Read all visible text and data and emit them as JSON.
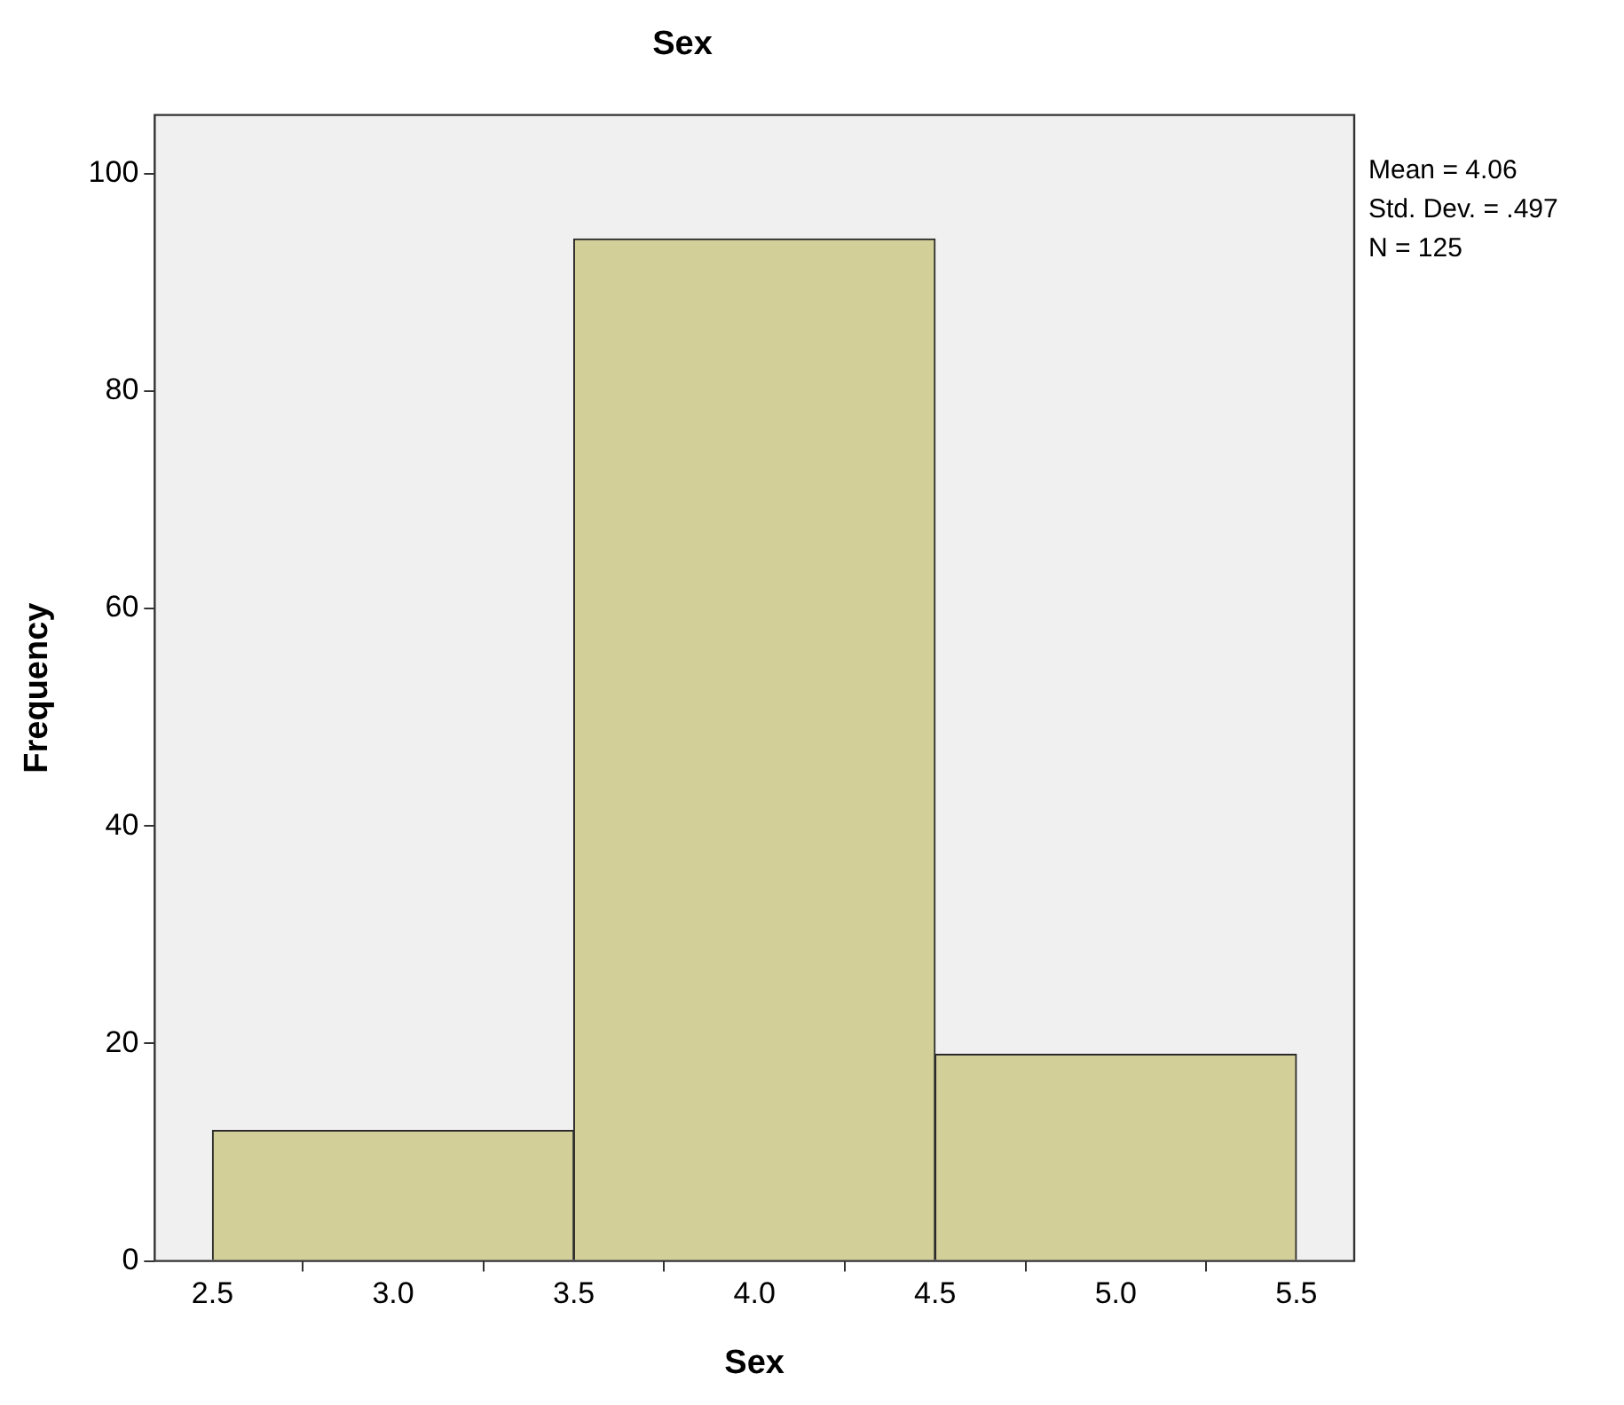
{
  "chart_data": {
    "type": "histogram",
    "title": "Sex",
    "xlabel": "Sex",
    "ylabel": "Frequency",
    "bins": [
      2.5,
      3.5,
      4.5,
      5.5
    ],
    "values": [
      12,
      94,
      19
    ],
    "color": "#d3cf98",
    "xlim": [
      2.34,
      5.66
    ],
    "xticks": [
      {
        "value": 2.5,
        "label": "2.5"
      },
      {
        "value": 3,
        "label": "3.0"
      },
      {
        "value": 3.5,
        "label": "3.5"
      },
      {
        "value": 4,
        "label": "4.0"
      },
      {
        "value": 4.5,
        "label": "4.5"
      },
      {
        "value": 5,
        "label": "5.0"
      },
      {
        "value": 5.5,
        "label": "5.5"
      }
    ],
    "ylim": [
      0,
      105.4
    ],
    "yticks": [
      0,
      20,
      40,
      60,
      80,
      100
    ],
    "annotations": [
      "Mean = 4.06",
      "Std. Dev. = .497",
      "N = 125"
    ],
    "grid": false,
    "legend": false
  }
}
